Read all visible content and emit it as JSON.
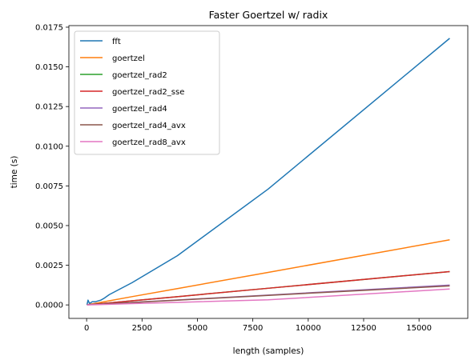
{
  "chart_data": {
    "type": "line",
    "title": "Faster Goertzel w/ radix",
    "xlabel": "length (samples)",
    "ylabel": "time (s)",
    "xlim": [
      -800,
      17200
    ],
    "ylim": [
      -0.00085,
      0.0176
    ],
    "x_ticks": [
      0,
      2500,
      5000,
      7500,
      10000,
      12500,
      15000
    ],
    "x_tick_labels": [
      "0",
      "2500",
      "5000",
      "7500",
      "10000",
      "12500",
      "15000"
    ],
    "y_ticks": [
      0,
      0.0025,
      0.005,
      0.0075,
      0.01,
      0.0125,
      0.015,
      0.0175
    ],
    "y_tick_labels": [
      "0.0000",
      "0.0025",
      "0.0050",
      "0.0075",
      "0.0100",
      "0.0125",
      "0.0150",
      "0.0175"
    ],
    "grid": false,
    "legend_position": "top-left",
    "series": [
      {
        "name": "fft",
        "color": "#1f77b4",
        "x": [
          16,
          64,
          128,
          200,
          256,
          400,
          512,
          640,
          768,
          1024,
          2048,
          4096,
          8192,
          16384
        ],
        "y": [
          0.0,
          0.0003,
          0.0001,
          0.00015,
          0.0002,
          0.0002,
          0.00025,
          0.0003,
          0.0004,
          0.00065,
          0.0014,
          0.0031,
          0.0073,
          0.0168
        ]
      },
      {
        "name": "goertzel",
        "color": "#ff7f0e",
        "x": [
          16,
          512,
          1024,
          2048,
          4096,
          8192,
          16384
        ],
        "y": [
          1e-05,
          0.00013,
          0.00026,
          0.00052,
          0.00103,
          0.00205,
          0.0041
        ]
      },
      {
        "name": "goertzel_rad2",
        "color": "#2ca02c",
        "x": [
          16,
          1024,
          2048,
          4096,
          8192,
          16384
        ],
        "y": [
          1e-05,
          0.00013,
          0.00026,
          0.00052,
          0.00105,
          0.0021
        ]
      },
      {
        "name": "goertzel_rad2_sse",
        "color": "#d62728",
        "x": [
          16,
          1024,
          2048,
          4096,
          8192,
          16384
        ],
        "y": [
          1e-05,
          0.00013,
          0.00026,
          0.00052,
          0.00105,
          0.0021
        ]
      },
      {
        "name": "goertzel_rad4",
        "color": "#9467bd",
        "x": [
          16,
          1024,
          2048,
          4096,
          8192,
          16384
        ],
        "y": [
          1e-05,
          8e-05,
          0.00016,
          0.00031,
          0.00062,
          0.00125
        ]
      },
      {
        "name": "goertzel_rad4_avx",
        "color": "#8c564b",
        "x": [
          16,
          1024,
          2048,
          4096,
          8192,
          16384
        ],
        "y": [
          1e-05,
          8e-05,
          0.00015,
          0.0003,
          0.0006,
          0.0012
        ]
      },
      {
        "name": "goertzel_rad8_avx",
        "color": "#e377c2",
        "x": [
          16,
          1024,
          2048,
          4096,
          8192,
          16384
        ],
        "y": [
          0.0,
          4e-05,
          8e-05,
          0.00016,
          0.00032,
          0.001
        ]
      }
    ]
  }
}
